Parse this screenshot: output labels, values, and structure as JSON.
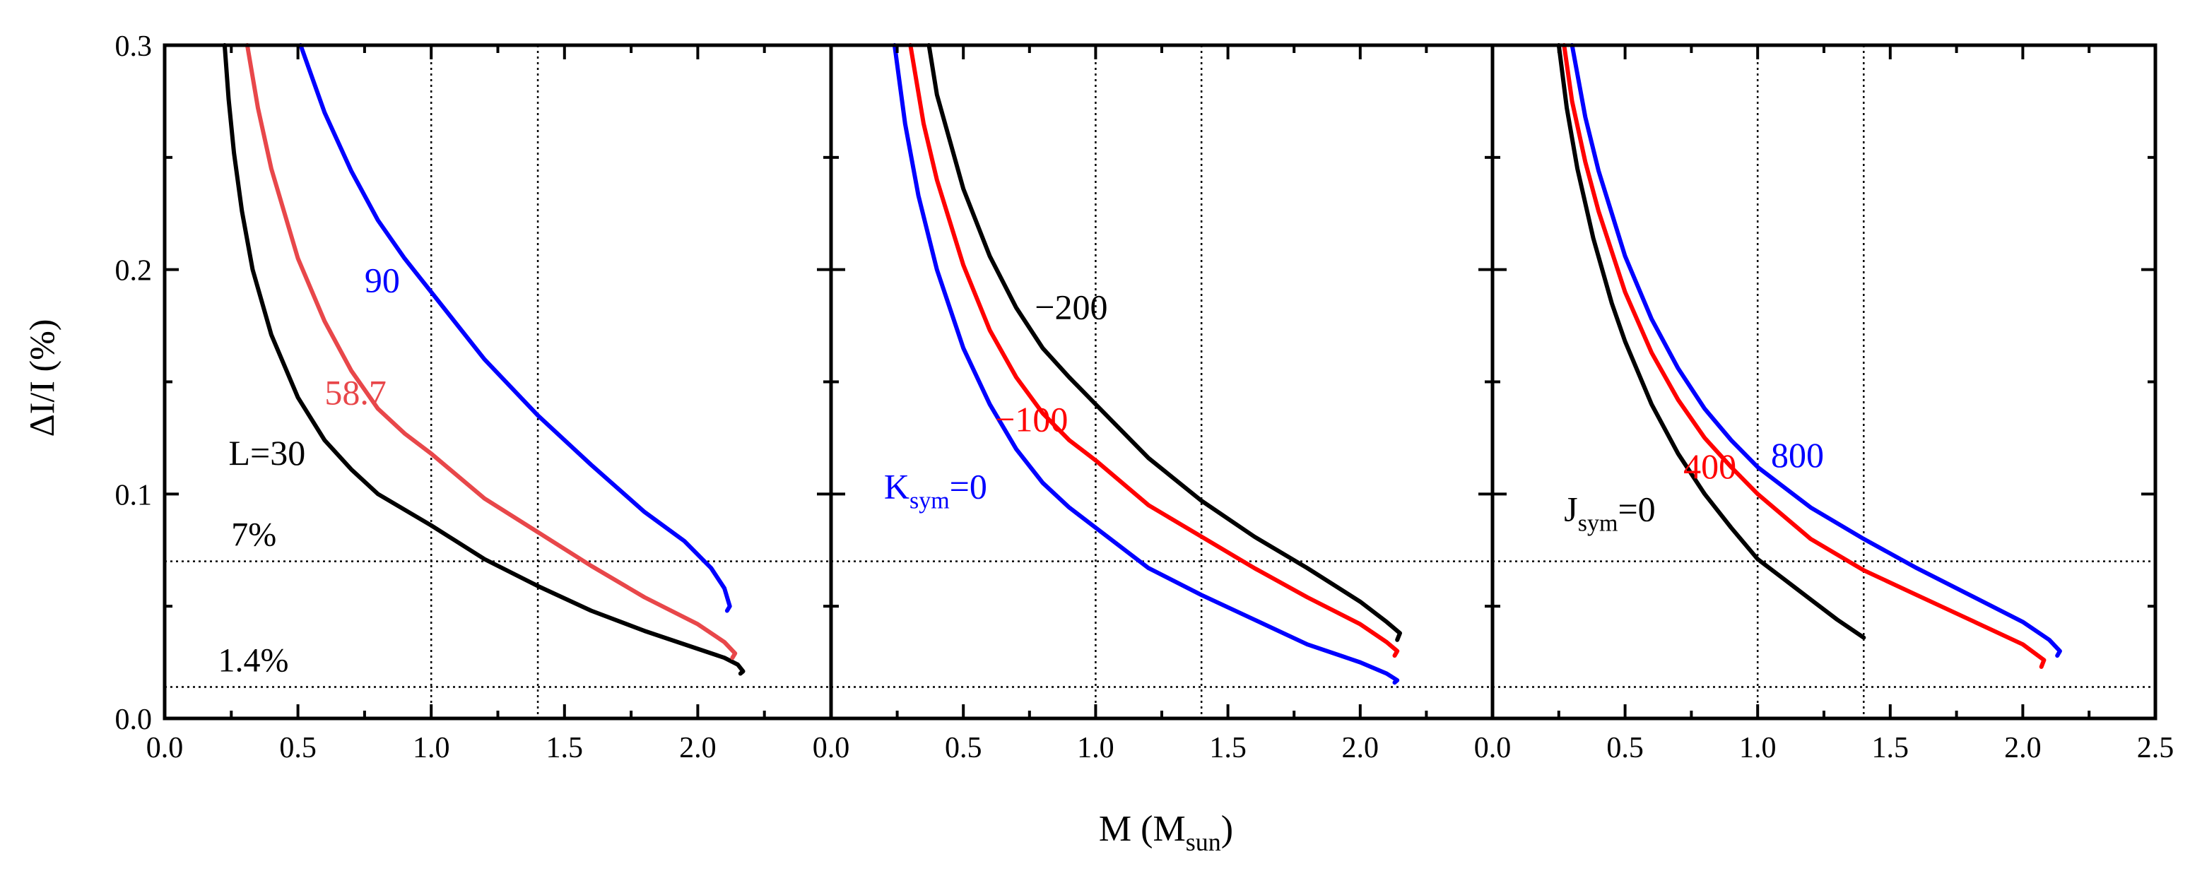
{
  "figure": {
    "ylabel": "ΔI/I (%)",
    "xlabel_main": "M (M",
    "xlabel_sub": "sun",
    "xlabel_close": ")"
  },
  "chart_data": [
    {
      "type": "line",
      "panel": "L",
      "xlim": [
        0.0,
        2.5
      ],
      "ylim": [
        0.0,
        0.3
      ],
      "xticks": [
        "0.0",
        "0.5",
        "1.0",
        "1.5",
        "2.0"
      ],
      "yticks": [
        "0.0",
        "0.1",
        "0.2",
        "0.3"
      ],
      "vlines": [
        1.0,
        1.4
      ],
      "hlines": [
        0.07,
        0.014
      ],
      "hline_labels": [
        {
          "text": "7%",
          "x": 0.25,
          "y": 0.077
        },
        {
          "text": "1.4%",
          "x": 0.2,
          "y": 0.021
        }
      ],
      "series": [
        {
          "name": "L=30",
          "color": "#000000",
          "label": {
            "main": "L=30",
            "sub": "",
            "tail": "",
            "x": 0.24,
            "y": 0.113
          },
          "x": [
            0.225,
            0.24,
            0.26,
            0.29,
            0.33,
            0.4,
            0.5,
            0.6,
            0.7,
            0.8,
            0.9,
            1.0,
            1.2,
            1.4,
            1.6,
            1.8,
            2.0,
            2.1,
            2.15,
            2.17,
            2.16
          ],
          "y": [
            0.3,
            0.276,
            0.252,
            0.226,
            0.2,
            0.171,
            0.143,
            0.124,
            0.111,
            0.1,
            0.093,
            0.086,
            0.071,
            0.059,
            0.048,
            0.039,
            0.031,
            0.027,
            0.024,
            0.021,
            0.02
          ]
        },
        {
          "name": "58.7",
          "color": "#e8474a",
          "label": {
            "main": "58.7",
            "sub": "",
            "tail": "",
            "x": 0.6,
            "y": 0.14
          },
          "x": [
            0.31,
            0.35,
            0.4,
            0.5,
            0.6,
            0.7,
            0.8,
            0.9,
            1.0,
            1.2,
            1.4,
            1.6,
            1.8,
            2.0,
            2.1,
            2.14,
            2.13
          ],
          "y": [
            0.3,
            0.272,
            0.245,
            0.205,
            0.177,
            0.155,
            0.138,
            0.127,
            0.118,
            0.098,
            0.083,
            0.068,
            0.054,
            0.042,
            0.034,
            0.029,
            0.027
          ]
        },
        {
          "name": "90",
          "color": "#0000ff",
          "label": {
            "main": "90",
            "sub": "",
            "tail": "",
            "x": 0.75,
            "y": 0.19
          },
          "x": [
            0.51,
            0.6,
            0.7,
            0.8,
            0.9,
            1.0,
            1.2,
            1.4,
            1.6,
            1.8,
            1.95,
            2.05,
            2.1,
            2.12,
            2.11
          ],
          "y": [
            0.3,
            0.27,
            0.244,
            0.222,
            0.205,
            0.19,
            0.16,
            0.135,
            0.113,
            0.092,
            0.079,
            0.067,
            0.058,
            0.05,
            0.048
          ]
        }
      ]
    },
    {
      "type": "line",
      "panel": "Ksym",
      "xlim": [
        0.0,
        2.5
      ],
      "ylim": [
        0.0,
        0.3
      ],
      "xticks": [
        "0.0",
        "0.5",
        "1.0",
        "1.5",
        "2.0"
      ],
      "yticks": [],
      "vlines": [
        1.0,
        1.4
      ],
      "hlines": [
        0.07,
        0.014
      ],
      "hline_labels": [],
      "series": [
        {
          "name": "Ksym=0",
          "color": "#0000ff",
          "label": {
            "main": "K",
            "sub": "sym",
            "tail": "=0",
            "x": 0.2,
            "y": 0.098
          },
          "x": [
            0.24,
            0.28,
            0.33,
            0.4,
            0.5,
            0.6,
            0.7,
            0.8,
            0.9,
            1.0,
            1.2,
            1.4,
            1.6,
            1.8,
            2.0,
            2.1,
            2.14,
            2.13
          ],
          "y": [
            0.3,
            0.265,
            0.233,
            0.2,
            0.165,
            0.14,
            0.12,
            0.105,
            0.094,
            0.085,
            0.067,
            0.055,
            0.044,
            0.033,
            0.025,
            0.02,
            0.017,
            0.016
          ]
        },
        {
          "name": "-100",
          "color": "#ff0000",
          "label": {
            "main": "−100",
            "sub": "",
            "tail": "",
            "x": 0.62,
            "y": 0.128
          },
          "x": [
            0.3,
            0.35,
            0.4,
            0.5,
            0.6,
            0.7,
            0.8,
            0.9,
            1.0,
            1.2,
            1.4,
            1.6,
            1.8,
            2.0,
            2.1,
            2.14,
            2.13
          ],
          "y": [
            0.3,
            0.265,
            0.24,
            0.202,
            0.173,
            0.152,
            0.136,
            0.124,
            0.115,
            0.095,
            0.081,
            0.067,
            0.054,
            0.042,
            0.034,
            0.03,
            0.028
          ]
        },
        {
          "name": "-200",
          "color": "#000000",
          "label": {
            "main": "−200",
            "sub": "",
            "tail": "",
            "x": 0.77,
            "y": 0.178
          },
          "x": [
            0.37,
            0.4,
            0.45,
            0.5,
            0.6,
            0.7,
            0.8,
            0.9,
            1.0,
            1.2,
            1.4,
            1.6,
            1.8,
            2.0,
            2.1,
            2.15,
            2.14
          ],
          "y": [
            0.3,
            0.278,
            0.257,
            0.236,
            0.206,
            0.183,
            0.165,
            0.152,
            0.14,
            0.116,
            0.097,
            0.081,
            0.067,
            0.052,
            0.043,
            0.038,
            0.035
          ]
        }
      ]
    },
    {
      "type": "line",
      "panel": "Jsym",
      "xlim": [
        0.0,
        2.5
      ],
      "ylim": [
        0.0,
        0.3
      ],
      "xticks": [
        "0.0",
        "0.5",
        "1.0",
        "1.5",
        "2.0",
        "2.5"
      ],
      "yticks": [],
      "vlines": [
        1.0,
        1.4
      ],
      "hlines": [
        0.07,
        0.014
      ],
      "hline_labels": [],
      "series": [
        {
          "name": "Jsym=0",
          "color": "#000000",
          "label": {
            "main": "J",
            "sub": "sym",
            "tail": "=0",
            "x": 0.27,
            "y": 0.088
          },
          "x": [
            0.25,
            0.28,
            0.32,
            0.38,
            0.45,
            0.5,
            0.6,
            0.7,
            0.8,
            0.9,
            1.0,
            1.1,
            1.2,
            1.3,
            1.4
          ],
          "y": [
            0.3,
            0.272,
            0.245,
            0.214,
            0.185,
            0.168,
            0.14,
            0.118,
            0.1,
            0.085,
            0.071,
            0.062,
            0.053,
            0.044,
            0.036
          ]
        },
        {
          "name": "400",
          "color": "#ff0000",
          "label": {
            "main": "400",
            "sub": "",
            "tail": "",
            "x": 0.72,
            "y": 0.107
          },
          "x": [
            0.27,
            0.3,
            0.35,
            0.4,
            0.5,
            0.6,
            0.7,
            0.8,
            0.9,
            1.0,
            1.2,
            1.4,
            1.6,
            1.8,
            2.0,
            2.08,
            2.07
          ],
          "y": [
            0.3,
            0.275,
            0.248,
            0.226,
            0.19,
            0.163,
            0.142,
            0.125,
            0.112,
            0.1,
            0.08,
            0.066,
            0.055,
            0.044,
            0.033,
            0.026,
            0.023
          ]
        },
        {
          "name": "800",
          "color": "#0000ff",
          "label": {
            "main": "800",
            "sub": "",
            "tail": "",
            "x": 1.05,
            "y": 0.112
          },
          "x": [
            0.3,
            0.35,
            0.4,
            0.5,
            0.6,
            0.7,
            0.8,
            0.9,
            1.0,
            1.2,
            1.4,
            1.6,
            1.8,
            2.0,
            2.1,
            2.14,
            2.13
          ],
          "y": [
            0.3,
            0.268,
            0.244,
            0.206,
            0.178,
            0.156,
            0.138,
            0.124,
            0.112,
            0.094,
            0.08,
            0.067,
            0.055,
            0.043,
            0.035,
            0.03,
            0.028
          ]
        }
      ]
    }
  ]
}
